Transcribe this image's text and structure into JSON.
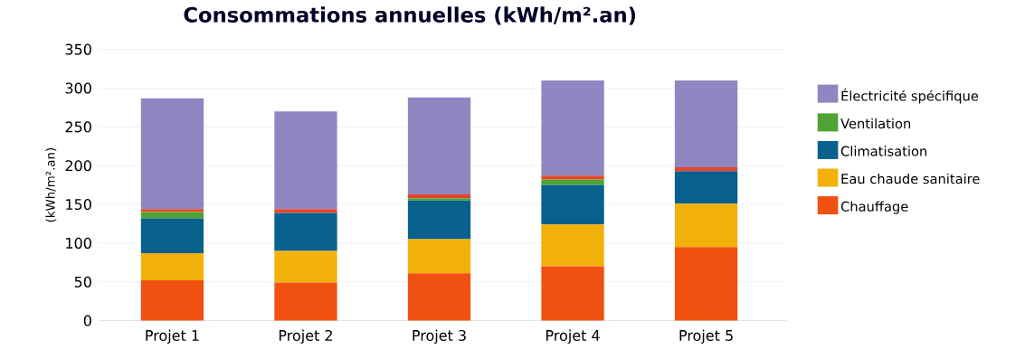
{
  "chart_data": {
    "type": "bar",
    "stacked": true,
    "title": "Consommations annuelles (kWh/m².an)",
    "ylabel": "(kWh/m².an)",
    "categories": [
      "Projet 1",
      "Projet 2",
      "Projet 3",
      "Projet 4",
      "Projet 5"
    ],
    "series": [
      {
        "name": "Chauffage",
        "color": "#f05010",
        "values": [
          52,
          49,
          61,
          70,
          95
        ]
      },
      {
        "name": "Eau chaude sanitaire",
        "color": "#f2b10a",
        "values": [
          35,
          41,
          44,
          54,
          56
        ]
      },
      {
        "name": "Climatisation",
        "color": "#08608c",
        "values": [
          45,
          49,
          50,
          51,
          42
        ]
      },
      {
        "name": "Ventilation",
        "color": "#4ea334",
        "values": [
          8,
          0,
          3,
          7,
          0
        ]
      },
      {
        "color": "#e8462a",
        "values": [
          4,
          5,
          5,
          5,
          5
        ]
      },
      {
        "name": "Électricité spécifique",
        "color": "#8f86c2",
        "values": [
          143,
          126,
          125,
          123,
          112
        ]
      }
    ],
    "ylim": [
      0,
      350
    ],
    "yticks": [
      0,
      50,
      100,
      150,
      200,
      250,
      300,
      350
    ],
    "grid": "y",
    "legend": "right"
  }
}
